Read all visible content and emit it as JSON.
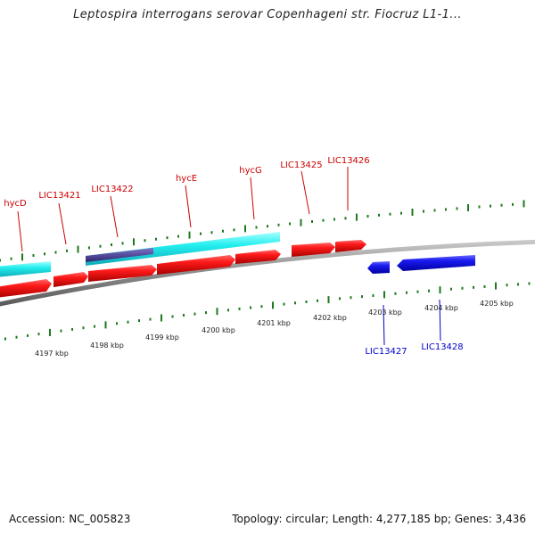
{
  "title": "Leptospira interrogans serovar Copenhageni str. Fiocruz L1-1...",
  "accession": "Accession: NC_005823",
  "summary": "Topology: circular; Length: 4,277,185 bp; Genes: 3,436",
  "colors": {
    "backbone": "#8a8a8a",
    "tick": "#1e7a1e",
    "forward_gene": "#ee1111",
    "reverse_gene": "#1111dd",
    "cds_feature": "#22eeee",
    "cds_feature_dark": "#4a3f96",
    "forward_label": "#cc0000",
    "reverse_label": "#0000cc"
  },
  "axis": {
    "ticks": [
      {
        "label": "4197 kbp"
      },
      {
        "label": "4198 kbp"
      },
      {
        "label": "4199 kbp"
      },
      {
        "label": "4200 kbp"
      },
      {
        "label": "4201 kbp"
      },
      {
        "label": "4202 kbp"
      },
      {
        "label": "4203 kbp"
      },
      {
        "label": "4204 kbp"
      },
      {
        "label": "4205 kbp"
      }
    ]
  },
  "genes": {
    "forward_labels": [
      "hycD",
      "LIC13421",
      "LIC13422",
      "hycE",
      "hycG",
      "LIC13425",
      "LIC13426"
    ],
    "reverse_labels": [
      "LIC13427",
      "LIC13428"
    ]
  }
}
